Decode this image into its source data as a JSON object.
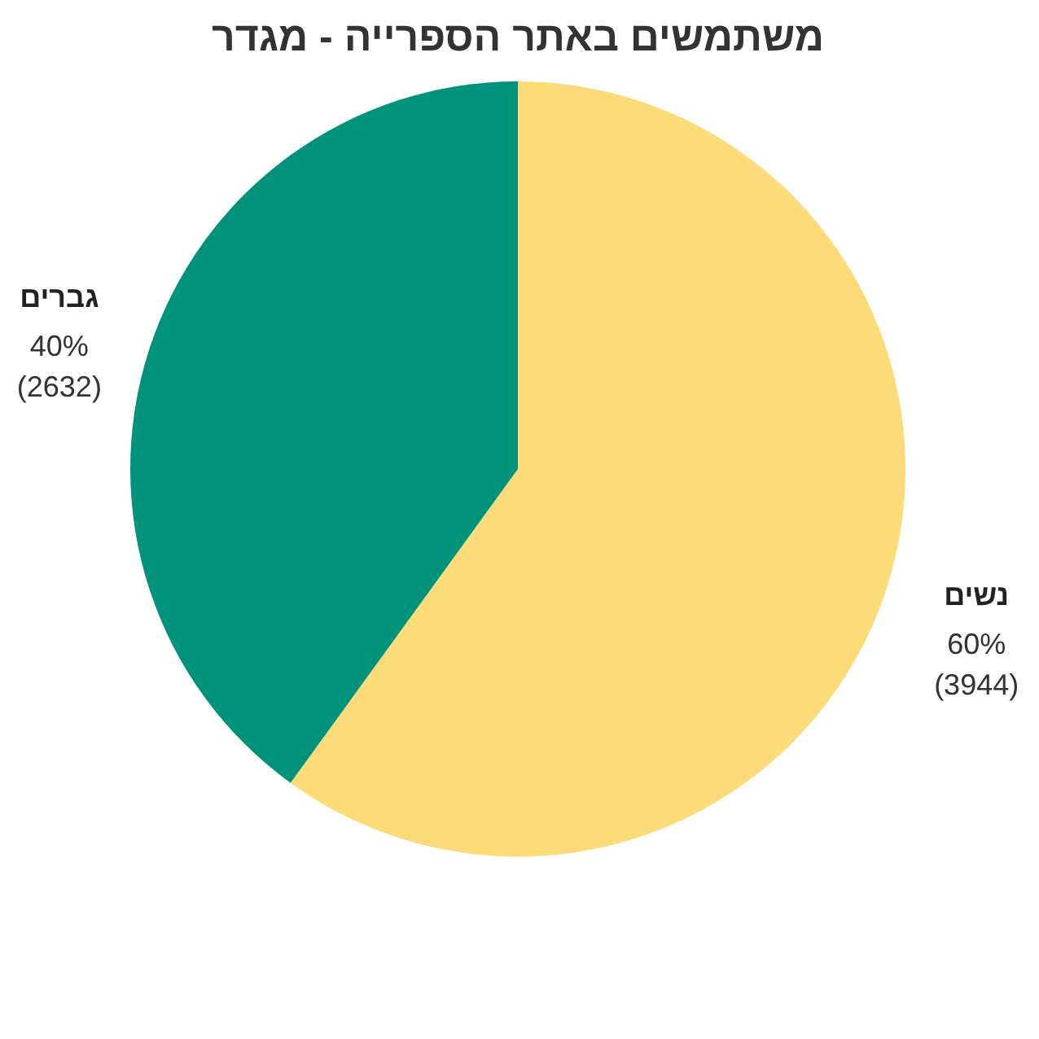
{
  "chart_data": {
    "type": "pie",
    "title": "משתמשים באתר הספרייה - מגדר",
    "categories": [
      "נשים",
      "גברים"
    ],
    "values": [
      3944,
      2632
    ],
    "colors": [
      "#fedb79",
      "#00937b"
    ],
    "value_labels": [
      "60%\n(3944)",
      "40%\n(2632)"
    ],
    "legend": false
  }
}
